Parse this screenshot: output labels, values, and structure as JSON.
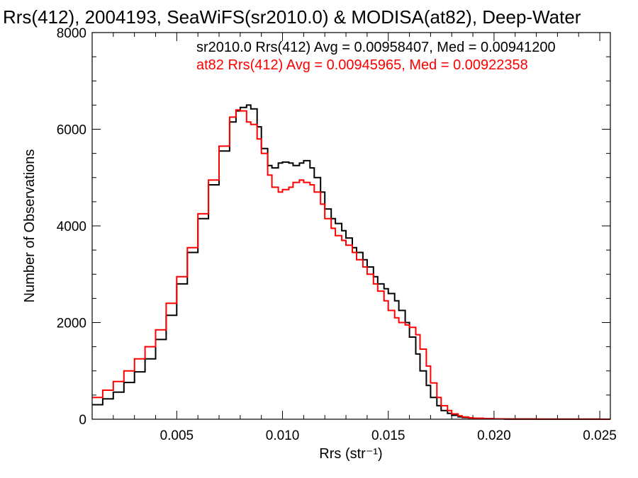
{
  "chart_data": {
    "type": "line",
    "title": "Rrs(412), 2004193, SeaWiFS(sr2010.0) & MODISA(at82), Deep-Water",
    "xlabel": "Rrs (str⁻¹)",
    "ylabel": "Number of Observations",
    "xlim": [
      0.001,
      0.0255
    ],
    "ylim": [
      0,
      8000
    ],
    "x_ticks": [
      "0.005",
      "0.010",
      "0.015",
      "0.020",
      "0.025"
    ],
    "y_ticks": [
      "0",
      "2000",
      "4000",
      "6000",
      "8000"
    ],
    "grid": false,
    "step": true,
    "annotations": [
      {
        "text": "sr2010.0 Rrs(412) Avg = 0.00958407, Med = 0.00941200",
        "color": "#000000"
      },
      {
        "text": "at82 Rrs(412) Avg = 0.00945965, Med = 0.00922358",
        "color": "#ff0000"
      }
    ],
    "x": [
      0.001,
      0.0015,
      0.002,
      0.0025,
      0.003,
      0.0035,
      0.004,
      0.0045,
      0.005,
      0.0055,
      0.006,
      0.0065,
      0.007,
      0.0075,
      0.0078,
      0.008,
      0.0083,
      0.0085,
      0.0088,
      0.009,
      0.0093,
      0.0095,
      0.0098,
      0.01,
      0.0103,
      0.0105,
      0.0108,
      0.011,
      0.0113,
      0.0115,
      0.0118,
      0.012,
      0.0123,
      0.0125,
      0.0128,
      0.013,
      0.0133,
      0.0135,
      0.0138,
      0.014,
      0.0143,
      0.0145,
      0.0148,
      0.015,
      0.0153,
      0.0155,
      0.0158,
      0.016,
      0.0163,
      0.0165,
      0.0168,
      0.017,
      0.0173,
      0.0175,
      0.0178,
      0.018,
      0.0183,
      0.0185,
      0.0188,
      0.019,
      0.0195,
      0.02,
      0.0205,
      0.021,
      0.022,
      0.023,
      0.024,
      0.025,
      0.0255
    ],
    "series": [
      {
        "color": "#000000",
        "values": [
          300,
          420,
          560,
          760,
          980,
          1250,
          1650,
          2150,
          2800,
          3450,
          4150,
          4850,
          5550,
          6150,
          6380,
          6450,
          6500,
          6420,
          6050,
          5600,
          5250,
          5200,
          5300,
          5320,
          5300,
          5250,
          5300,
          5350,
          5200,
          5000,
          4700,
          4350,
          4150,
          4050,
          3900,
          3750,
          3550,
          3450,
          3300,
          3150,
          2950,
          2800,
          2700,
          2600,
          2450,
          2250,
          2000,
          1700,
          1350,
          1000,
          700,
          450,
          280,
          180,
          120,
          80,
          50,
          35,
          25,
          18,
          10,
          7,
          4,
          3,
          2,
          1,
          1,
          0,
          0
        ]
      },
      {
        "color": "#ff0000",
        "values": [
          450,
          600,
          780,
          1000,
          1250,
          1500,
          1850,
          2400,
          2950,
          3550,
          4250,
          4950,
          5650,
          6250,
          6400,
          6380,
          6150,
          6100,
          5800,
          5500,
          5050,
          4800,
          4700,
          4750,
          4800,
          4900,
          4950,
          4900,
          4850,
          4700,
          4450,
          4150,
          3950,
          3800,
          3700,
          3600,
          3450,
          3300,
          3150,
          3000,
          2800,
          2650,
          2450,
          2250,
          2100,
          2000,
          1950,
          1900,
          1750,
          1450,
          1100,
          750,
          450,
          280,
          180,
          110,
          70,
          45,
          30,
          20,
          12,
          8,
          5,
          3,
          2,
          1,
          1,
          0,
          0
        ]
      }
    ]
  }
}
